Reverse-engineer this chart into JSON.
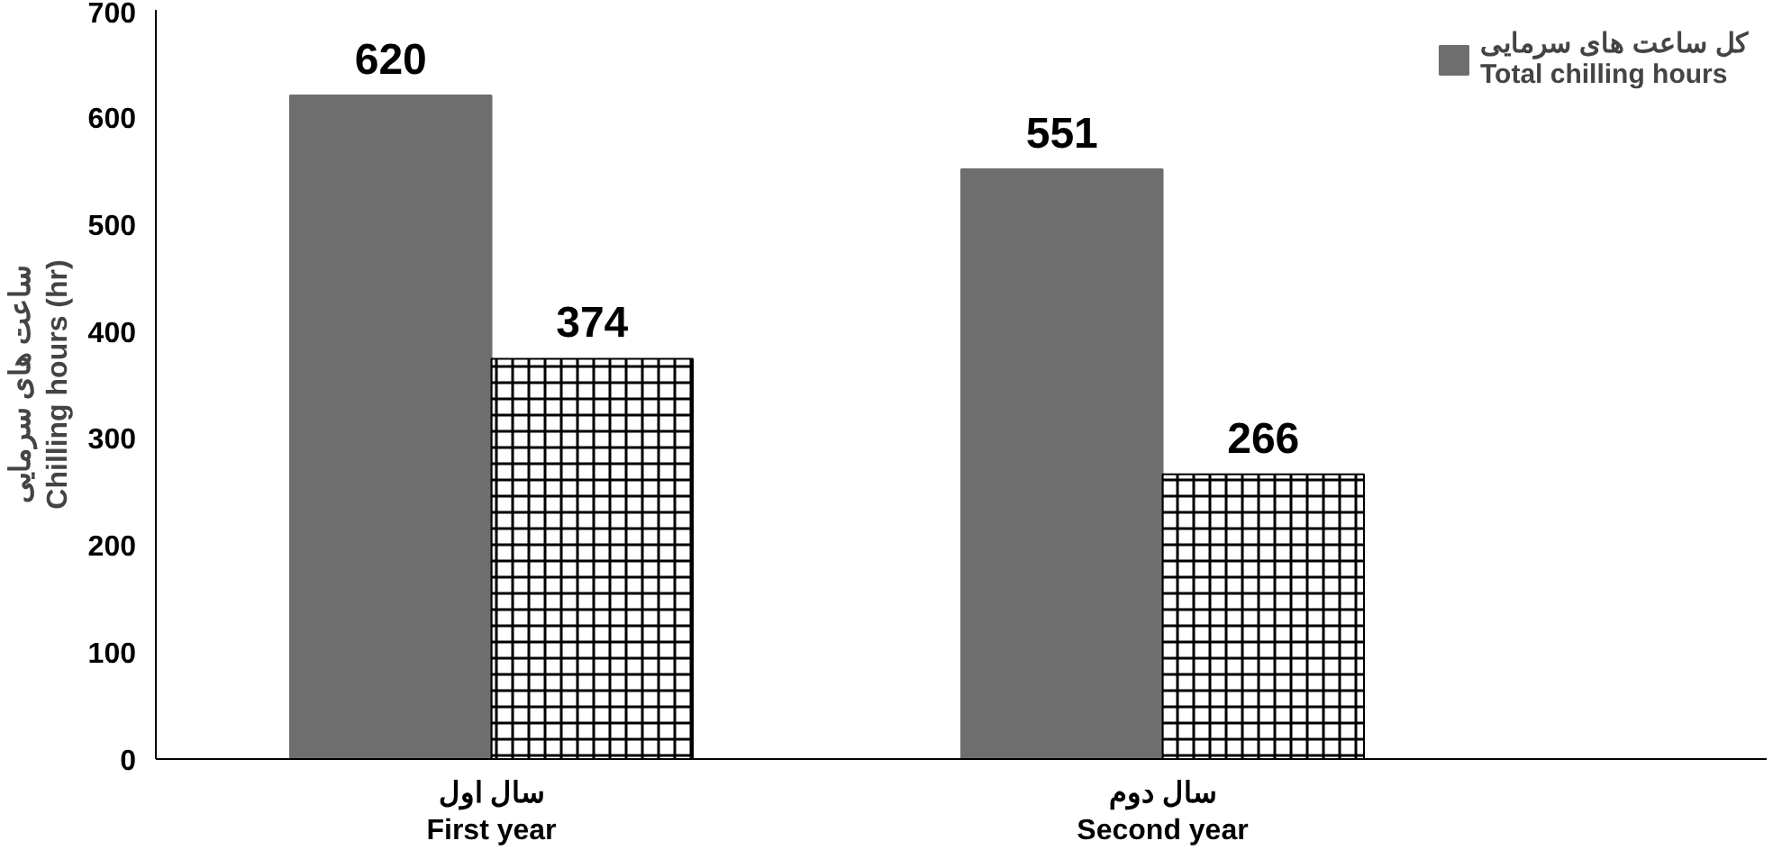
{
  "chart_data": {
    "type": "bar",
    "ylabel": "ساعت های سرمایی\nChilling hours (hr)",
    "categories": [
      "سال اول\nFirst year",
      "سال دوم\nSecond year"
    ],
    "series": [
      {
        "name": "کل ساعت های سرمایی\nTotal chilling hours",
        "color": "#6e6e6e",
        "values": [
          620,
          551
        ]
      },
      {
        "color": "#000000",
        "values": [
          374,
          266
        ]
      }
    ],
    "ylim": [
      0,
      700
    ],
    "yticks": [
      0,
      100,
      200,
      300,
      400,
      500,
      600,
      700
    ],
    "grid": false,
    "legend": "top right",
    "data_labels": true
  }
}
